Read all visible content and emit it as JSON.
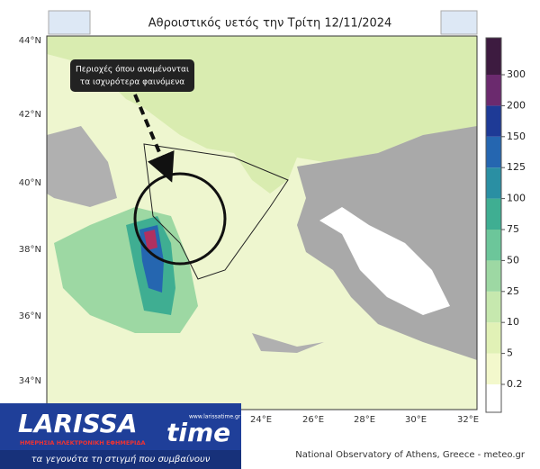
{
  "map": {
    "title": "Αθροιστικός υετός την Τρίτη 12/11/2024",
    "lat_labels": [
      "44°N",
      "42°N",
      "40°N",
      "38°N",
      "36°N",
      "34°N"
    ],
    "lon_labels": [
      "24°E",
      "26°E",
      "28°E",
      "30°E",
      "32°E"
    ],
    "annotation": [
      "Περιοχές όπου αναμένονται",
      "τα ισχυρότερα φαινόμενα"
    ],
    "credit": "National Observatory of Athens, Greece - meteo.gr"
  },
  "colorbar": {
    "ticks": [
      0.2,
      5,
      10,
      25,
      50,
      75,
      100,
      125,
      150,
      200,
      300
    ],
    "colors": [
      "#ffffff",
      "#f3f8cc",
      "#e1f1b6",
      "#c6e8ae",
      "#9dd8a3",
      "#6cc69a",
      "#3fae92",
      "#2a8fa3",
      "#2566b0",
      "#1e3a96",
      "#6b2a6e",
      "#3d1b40"
    ]
  },
  "logo": {
    "name_a": "LARISSA",
    "name_b": "time",
    "tagline": "ΗΜΕΡΗΣΙΑ ΗΛΕΚΤΡΟΝΙΚΗ ΕΦΗΜΕΡΙΔΑ",
    "url": "www.larissatime.gr",
    "slogan": "τα γεγονότα τη στιγμή που συμβαίνουν"
  }
}
